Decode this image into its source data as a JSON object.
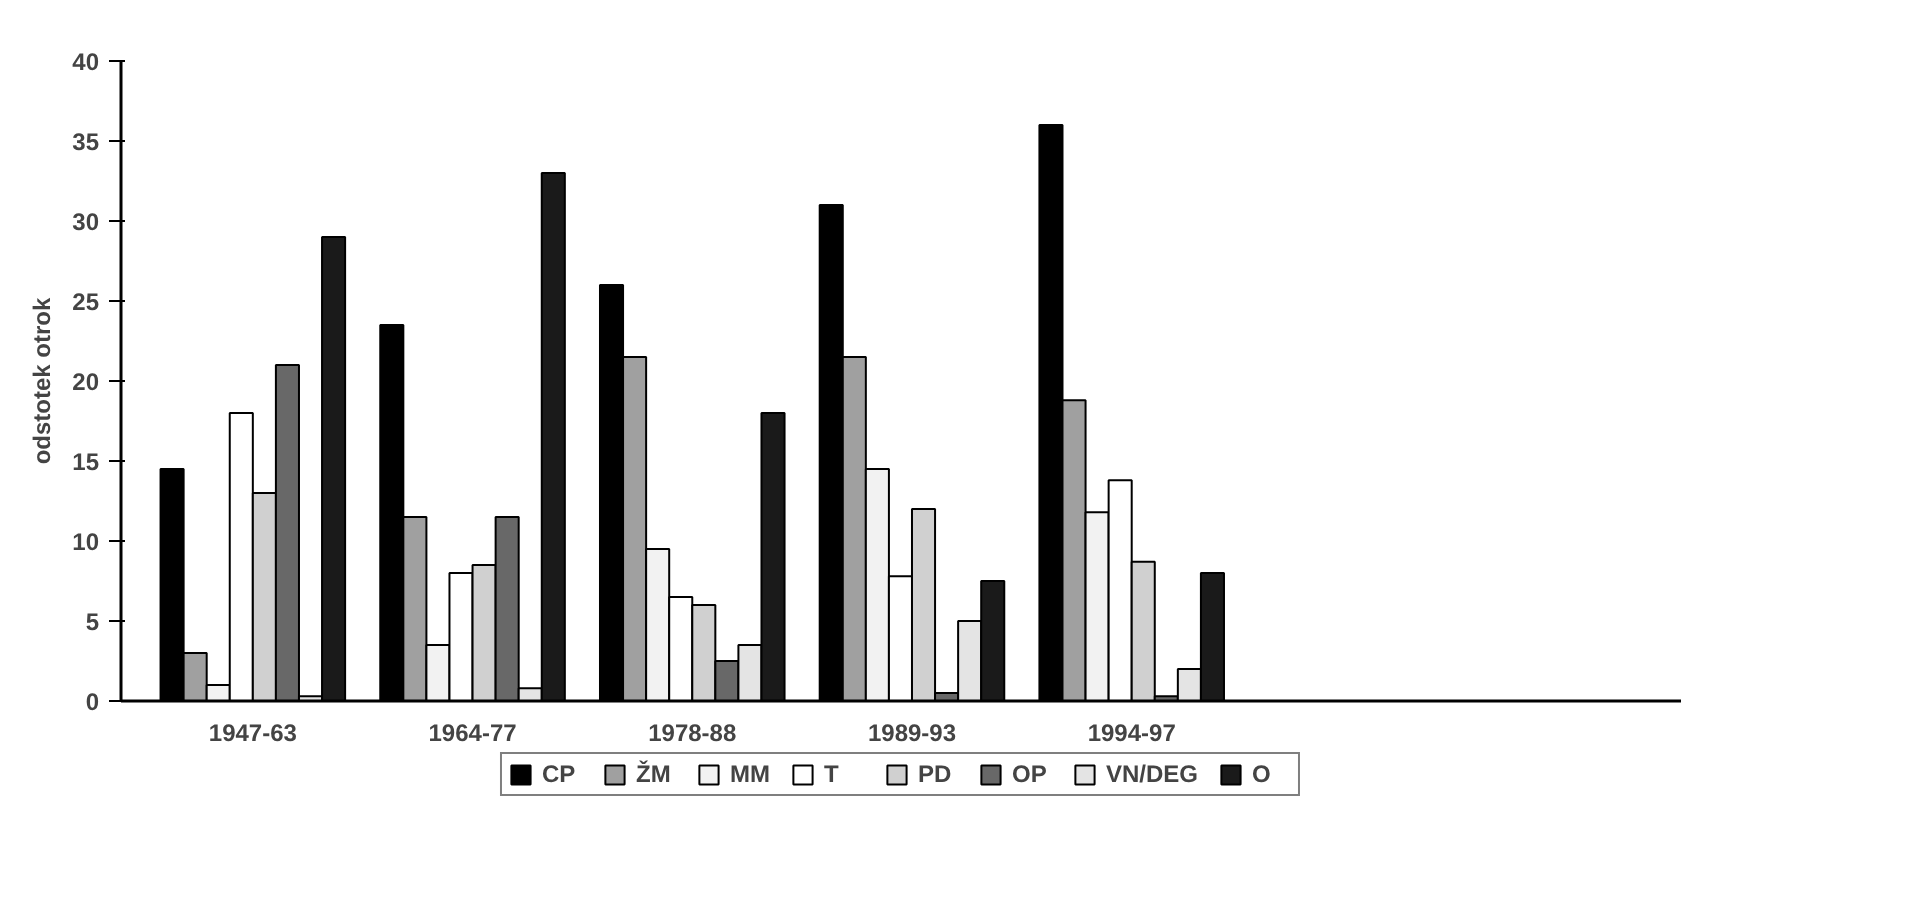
{
  "chart_data": {
    "type": "bar",
    "ylabel": "odstotek otrok",
    "categories": [
      "1947-63",
      "1964-77",
      "1978-88",
      "1989-93",
      "1994-97"
    ],
    "series": [
      {
        "name": "CP",
        "color": "#000000",
        "values": [
          14.5,
          23.5,
          26,
          31,
          36
        ]
      },
      {
        "name": "ŽM",
        "color": "#a0a0a0",
        "values": [
          3,
          11.5,
          21.5,
          21.5,
          18.8
        ]
      },
      {
        "name": "MM",
        "color": "#f2f2f2",
        "values": [
          1,
          3.5,
          9.5,
          14.5,
          11.8
        ]
      },
      {
        "name": "T",
        "color": "#ffffff",
        "values": [
          18,
          8,
          6.5,
          7.8,
          13.8
        ]
      },
      {
        "name": "PD",
        "color": "#d0d0d0",
        "values": [
          13,
          8.5,
          6,
          12,
          8.7
        ]
      },
      {
        "name": "OP",
        "color": "#686868",
        "values": [
          21,
          11.5,
          2.5,
          0.5,
          0.3
        ]
      },
      {
        "name": "VN/DEG",
        "color": "#e4e4e4",
        "values": [
          0.3,
          0.8,
          3.5,
          5,
          2
        ]
      },
      {
        "name": "O",
        "color": "#1a1a1a",
        "values": [
          29,
          33,
          18,
          7.5,
          8
        ]
      }
    ],
    "ylim": [
      0,
      40
    ],
    "yticks": [
      0,
      5,
      10,
      15,
      20,
      25,
      30,
      35,
      40
    ],
    "grid": false,
    "legend": "bottom"
  }
}
